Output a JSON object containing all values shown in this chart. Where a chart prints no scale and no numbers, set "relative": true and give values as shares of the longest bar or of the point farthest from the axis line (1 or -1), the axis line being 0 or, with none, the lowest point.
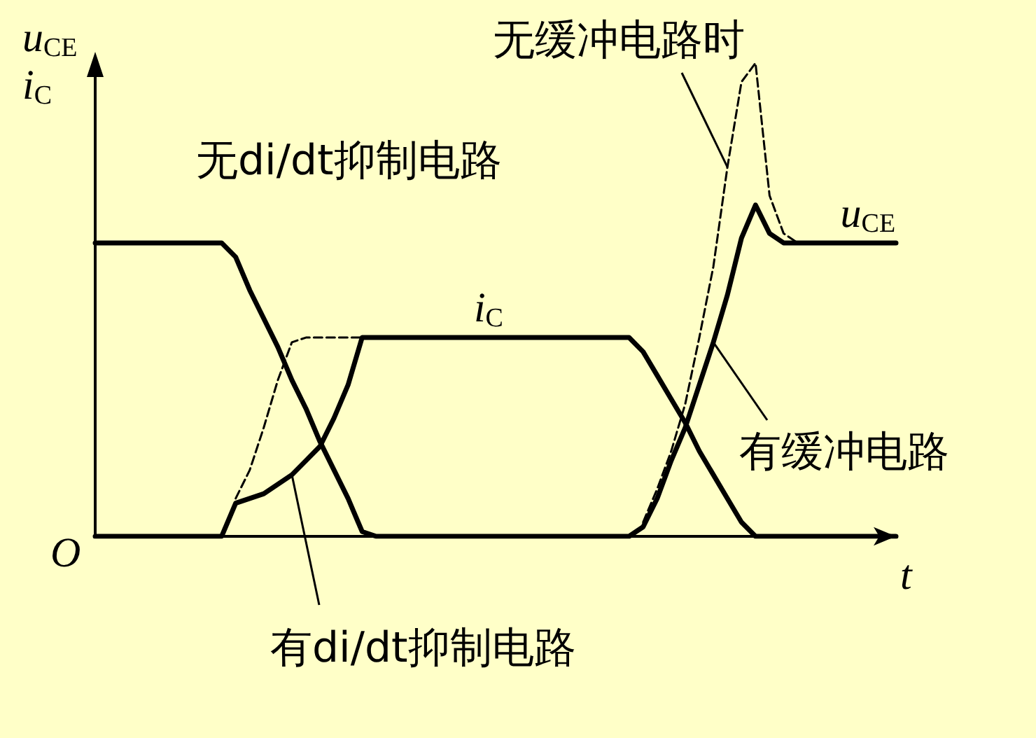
{
  "chart_data": {
    "type": "line",
    "relative": true,
    "ylabel": "u$_{CE}$\ni$_{C}$",
    "xlabel": "t",
    "grid": false,
    "marker": "none",
    "categories": [
      null,
      null,
      null,
      null,
      null,
      null,
      null,
      null,
      null,
      null,
      null,
      null,
      null,
      null,
      null,
      null,
      null,
      null,
      null,
      null,
      null,
      null,
      null,
      null,
      null,
      null,
      null,
      null,
      null,
      null,
      null,
      null,
      null,
      null,
      null,
      null,
      null,
      null,
      null,
      null,
      null,
      null,
      null,
      null,
      null,
      null,
      null,
      null,
      null,
      null,
      null,
      null,
      null,
      null,
      null,
      null,
      null,
      null
    ],
    "series": [
      {
        "name": null,
        "color": "#000000",
        "line_style": "dashed",
        "values": [
          null,
          null,
          null,
          null,
          null,
          null,
          null,
          null,
          null,
          null,
          0.08,
          0.14,
          0.23,
          0.33,
          0.41,
          0.42,
          0.42,
          0.42,
          0.42,
          0.42,
          null,
          null,
          null,
          null,
          null,
          null,
          null,
          null,
          null,
          null,
          null,
          null,
          null,
          null,
          null,
          null,
          null,
          null,
          null,
          null,
          null,
          null,
          null,
          null,
          null,
          null,
          null,
          null,
          null,
          null,
          null,
          null,
          null,
          null,
          null,
          null,
          null,
          null
        ]
      },
      {
        "name": null,
        "color": "#000000",
        "line_style": "dashed",
        "values": [
          null,
          null,
          null,
          null,
          null,
          null,
          null,
          null,
          null,
          null,
          null,
          null,
          null,
          null,
          null,
          null,
          null,
          null,
          null,
          null,
          null,
          null,
          null,
          null,
          null,
          null,
          null,
          null,
          null,
          null,
          null,
          null,
          null,
          null,
          null,
          null,
          null,
          null,
          null,
          0.03,
          0.1,
          0.18,
          0.28,
          0.42,
          0.57,
          0.78,
          0.96,
          1.0,
          0.72,
          0.64,
          0.62,
          null,
          null,
          null,
          null,
          null,
          null,
          null
        ]
      },
      {
        "name": "i$_{C}$",
        "color": "#000000",
        "line_style": "solid",
        "values": [
          0,
          0,
          0,
          0,
          0,
          0,
          0,
          0,
          0,
          0,
          0.07,
          0.08,
          0.09,
          0.11,
          0.13,
          0.16,
          0.19,
          0.25,
          0.32,
          0.42,
          0.42,
          0.42,
          0.42,
          0.42,
          0.42,
          0.42,
          0.42,
          0.42,
          0.42,
          0.42,
          0.42,
          0.42,
          0.42,
          0.42,
          0.42,
          0.42,
          0.42,
          0.42,
          0.42,
          0.39,
          0.34,
          0.29,
          0.24,
          0.18,
          0.13,
          0.08,
          0.03,
          0,
          0,
          0,
          0,
          0,
          0,
          0,
          0,
          0,
          0,
          0
        ]
      },
      {
        "name": "u$_{CE}$",
        "color": "#000000",
        "line_style": "solid",
        "values": [
          0.62,
          0.62,
          0.62,
          0.62,
          0.62,
          0.62,
          0.62,
          0.62,
          0.62,
          0.62,
          0.59,
          0.52,
          0.46,
          0.4,
          0.33,
          0.27,
          0.2,
          0.14,
          0.08,
          0.01,
          0,
          0,
          0,
          0,
          0,
          0,
          0,
          0,
          0,
          0,
          0,
          0,
          0,
          0,
          0,
          0,
          0,
          0,
          0,
          0.02,
          0.08,
          0.16,
          0.23,
          0.32,
          0.41,
          0.51,
          0.63,
          0.7,
          0.64,
          0.62,
          0.62,
          0.62,
          0.62,
          0.62,
          0.62,
          0.62,
          0.62,
          0.62
        ]
      }
    ],
    "annotations": [
      "无di/dt抑制电路",
      "有di/dt抑制电路",
      "无缓冲电路时",
      "有缓冲电路",
      "O"
    ]
  }
}
